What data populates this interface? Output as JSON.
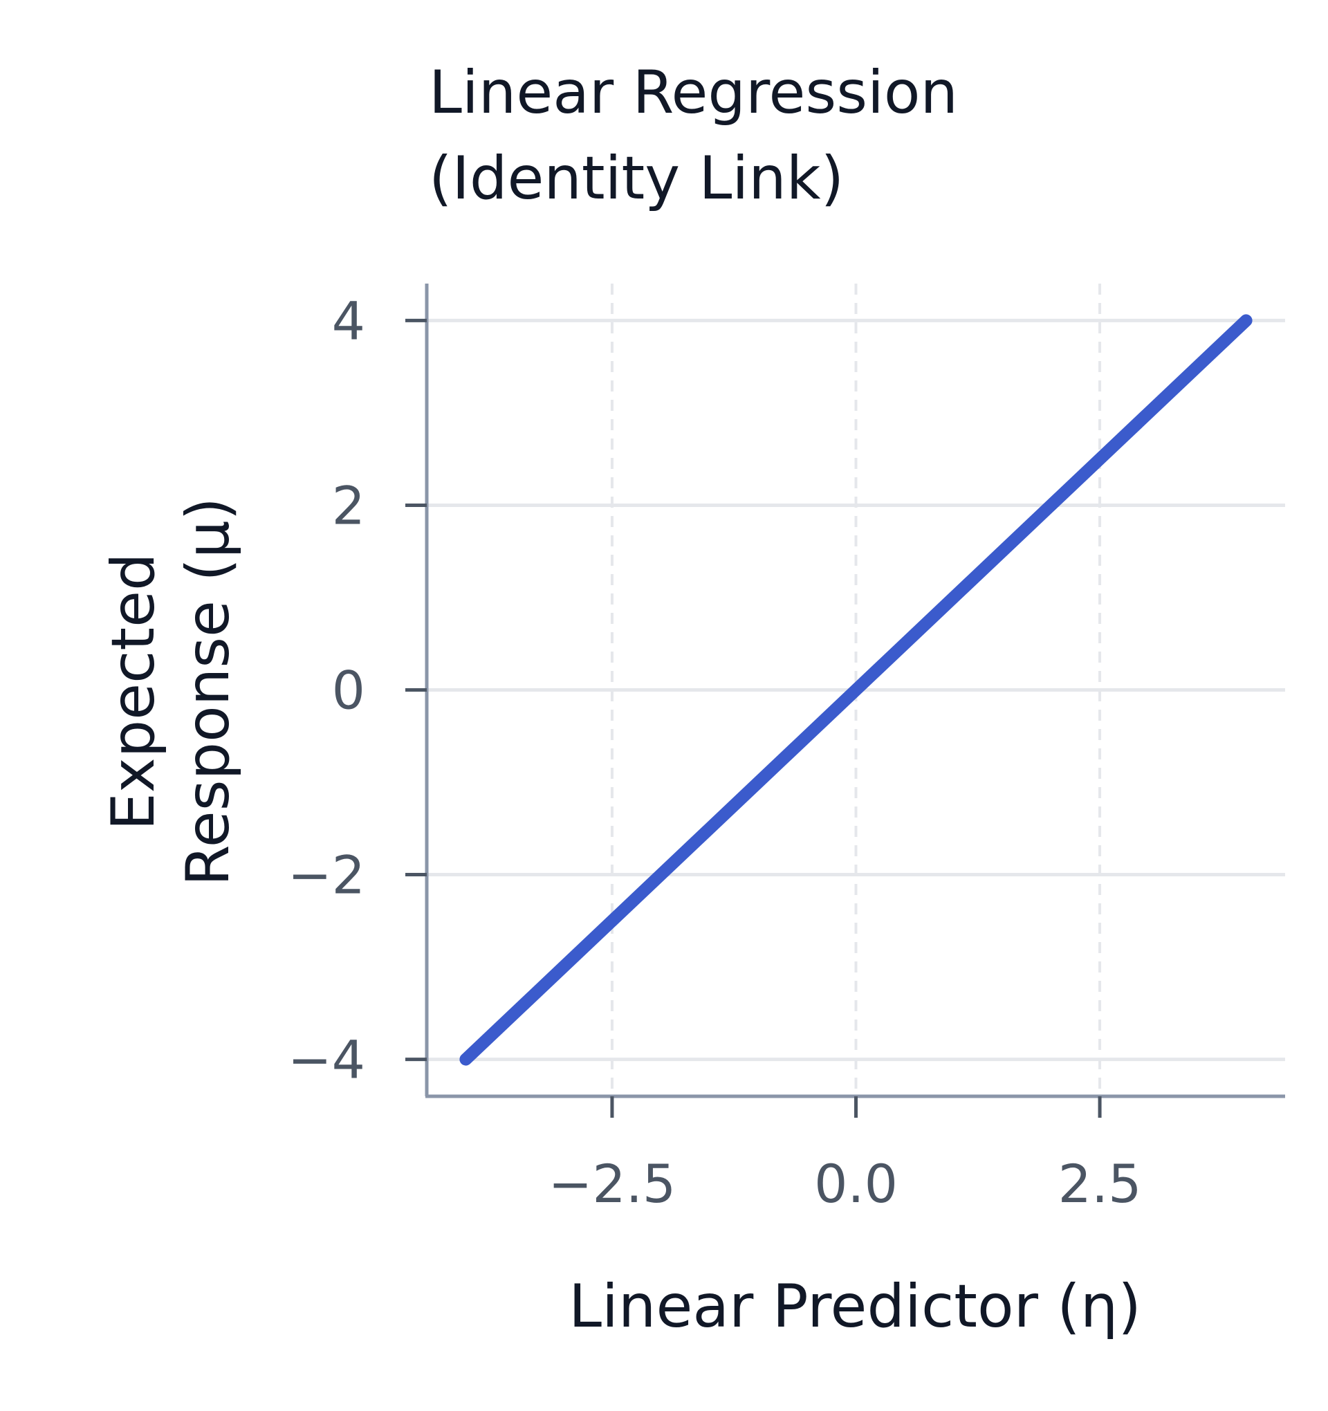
{
  "chart_data": {
    "type": "line",
    "title_lines": [
      "Linear Regression",
      "(Identity Link)"
    ],
    "xlabel": "Linear Predictor (η)",
    "ylabel_lines": [
      "Expected",
      "Response (μ)"
    ],
    "xlim": [
      -4.4,
      4.4
    ],
    "ylim": [
      -4.4,
      4.4
    ],
    "x_ticks": [
      -2.5,
      0.0,
      2.5
    ],
    "x_tick_labels": [
      "−2.5",
      "0.0",
      "2.5"
    ],
    "y_ticks": [
      -4,
      -2,
      0,
      2,
      4
    ],
    "y_tick_labels": [
      "−4",
      "−2",
      "0",
      "2",
      "4"
    ],
    "grid": true,
    "series": [
      {
        "x": [
          -4,
          4
        ],
        "y": [
          -4,
          4
        ],
        "color": "#3b5bcc"
      }
    ],
    "colors": {
      "line": "#3b5bcc",
      "axis": "#8a95a8",
      "grid": "#e5e7eb",
      "tick_text": "#4b5563",
      "title_text": "#111827"
    }
  }
}
